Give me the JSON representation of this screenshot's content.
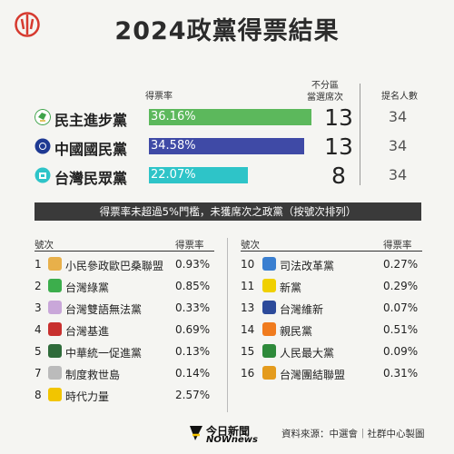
{
  "title": "2024政黨得票結果",
  "headers": {
    "rate": "得票率",
    "seats_line1": "不分區",
    "seats_line2": "當選席次",
    "nominated": "提名人數"
  },
  "main_parties": [
    {
      "name": "民主進步黨",
      "rate_label": "36.16%",
      "rate": 36.16,
      "seats": "13",
      "nominated": "34",
      "color": "#5cb85c"
    },
    {
      "name": "中國國民黨",
      "rate_label": "34.58%",
      "rate": 34.58,
      "seats": "13",
      "nominated": "34",
      "color": "#3f4aa6"
    },
    {
      "name": "台灣民眾黨",
      "rate_label": "22.07%",
      "rate": 22.07,
      "seats": "8",
      "nominated": "34",
      "color": "#2ec4c8"
    }
  ],
  "banner": "得票率未超過5%門檻，未獲席次之政黨（按號次排列）",
  "list_headers": {
    "number": "號次",
    "rate": "得票率"
  },
  "left_parties": [
    {
      "num": "1",
      "name": "小民參政歐巴桑聯盟",
      "pct": "0.93%",
      "icon_color": "#e8b04a"
    },
    {
      "num": "2",
      "name": "台灣綠黨",
      "pct": "0.85%",
      "icon_color": "#3cae4c"
    },
    {
      "num": "3",
      "name": "台灣雙語無法黨",
      "pct": "0.33%",
      "icon_color": "#c9a7d9"
    },
    {
      "num": "4",
      "name": "台灣基進",
      "pct": "0.69%",
      "icon_color": "#c8302e"
    },
    {
      "num": "5",
      "name": "中華統一促進黨",
      "pct": "0.13%",
      "icon_color": "#2f6b3a"
    },
    {
      "num": "7",
      "name": "制度救世島",
      "pct": "0.14%",
      "icon_color": "#bbbbbb"
    },
    {
      "num": "8",
      "name": "時代力量",
      "pct": "2.57%",
      "icon_color": "#f2c500"
    }
  ],
  "right_parties": [
    {
      "num": "10",
      "name": "司法改革黨",
      "pct": "0.27%",
      "icon_color": "#3a7fd0"
    },
    {
      "num": "11",
      "name": "新黨",
      "pct": "0.29%",
      "icon_color": "#f0d000"
    },
    {
      "num": "13",
      "name": "台灣維新",
      "pct": "0.07%",
      "icon_color": "#2c4a9a"
    },
    {
      "num": "14",
      "name": "親民黨",
      "pct": "0.51%",
      "icon_color": "#f07b1e"
    },
    {
      "num": "15",
      "name": "人民最大黨",
      "pct": "0.09%",
      "icon_color": "#2e8a3a"
    },
    {
      "num": "16",
      "name": "台灣團結聯盟",
      "pct": "0.31%",
      "icon_color": "#e49b1c"
    }
  ],
  "footer": {
    "logo_line1": "今日新聞",
    "logo_line2": "NOWnews",
    "source": "資料來源：中選會｜社群中心製圖"
  }
}
